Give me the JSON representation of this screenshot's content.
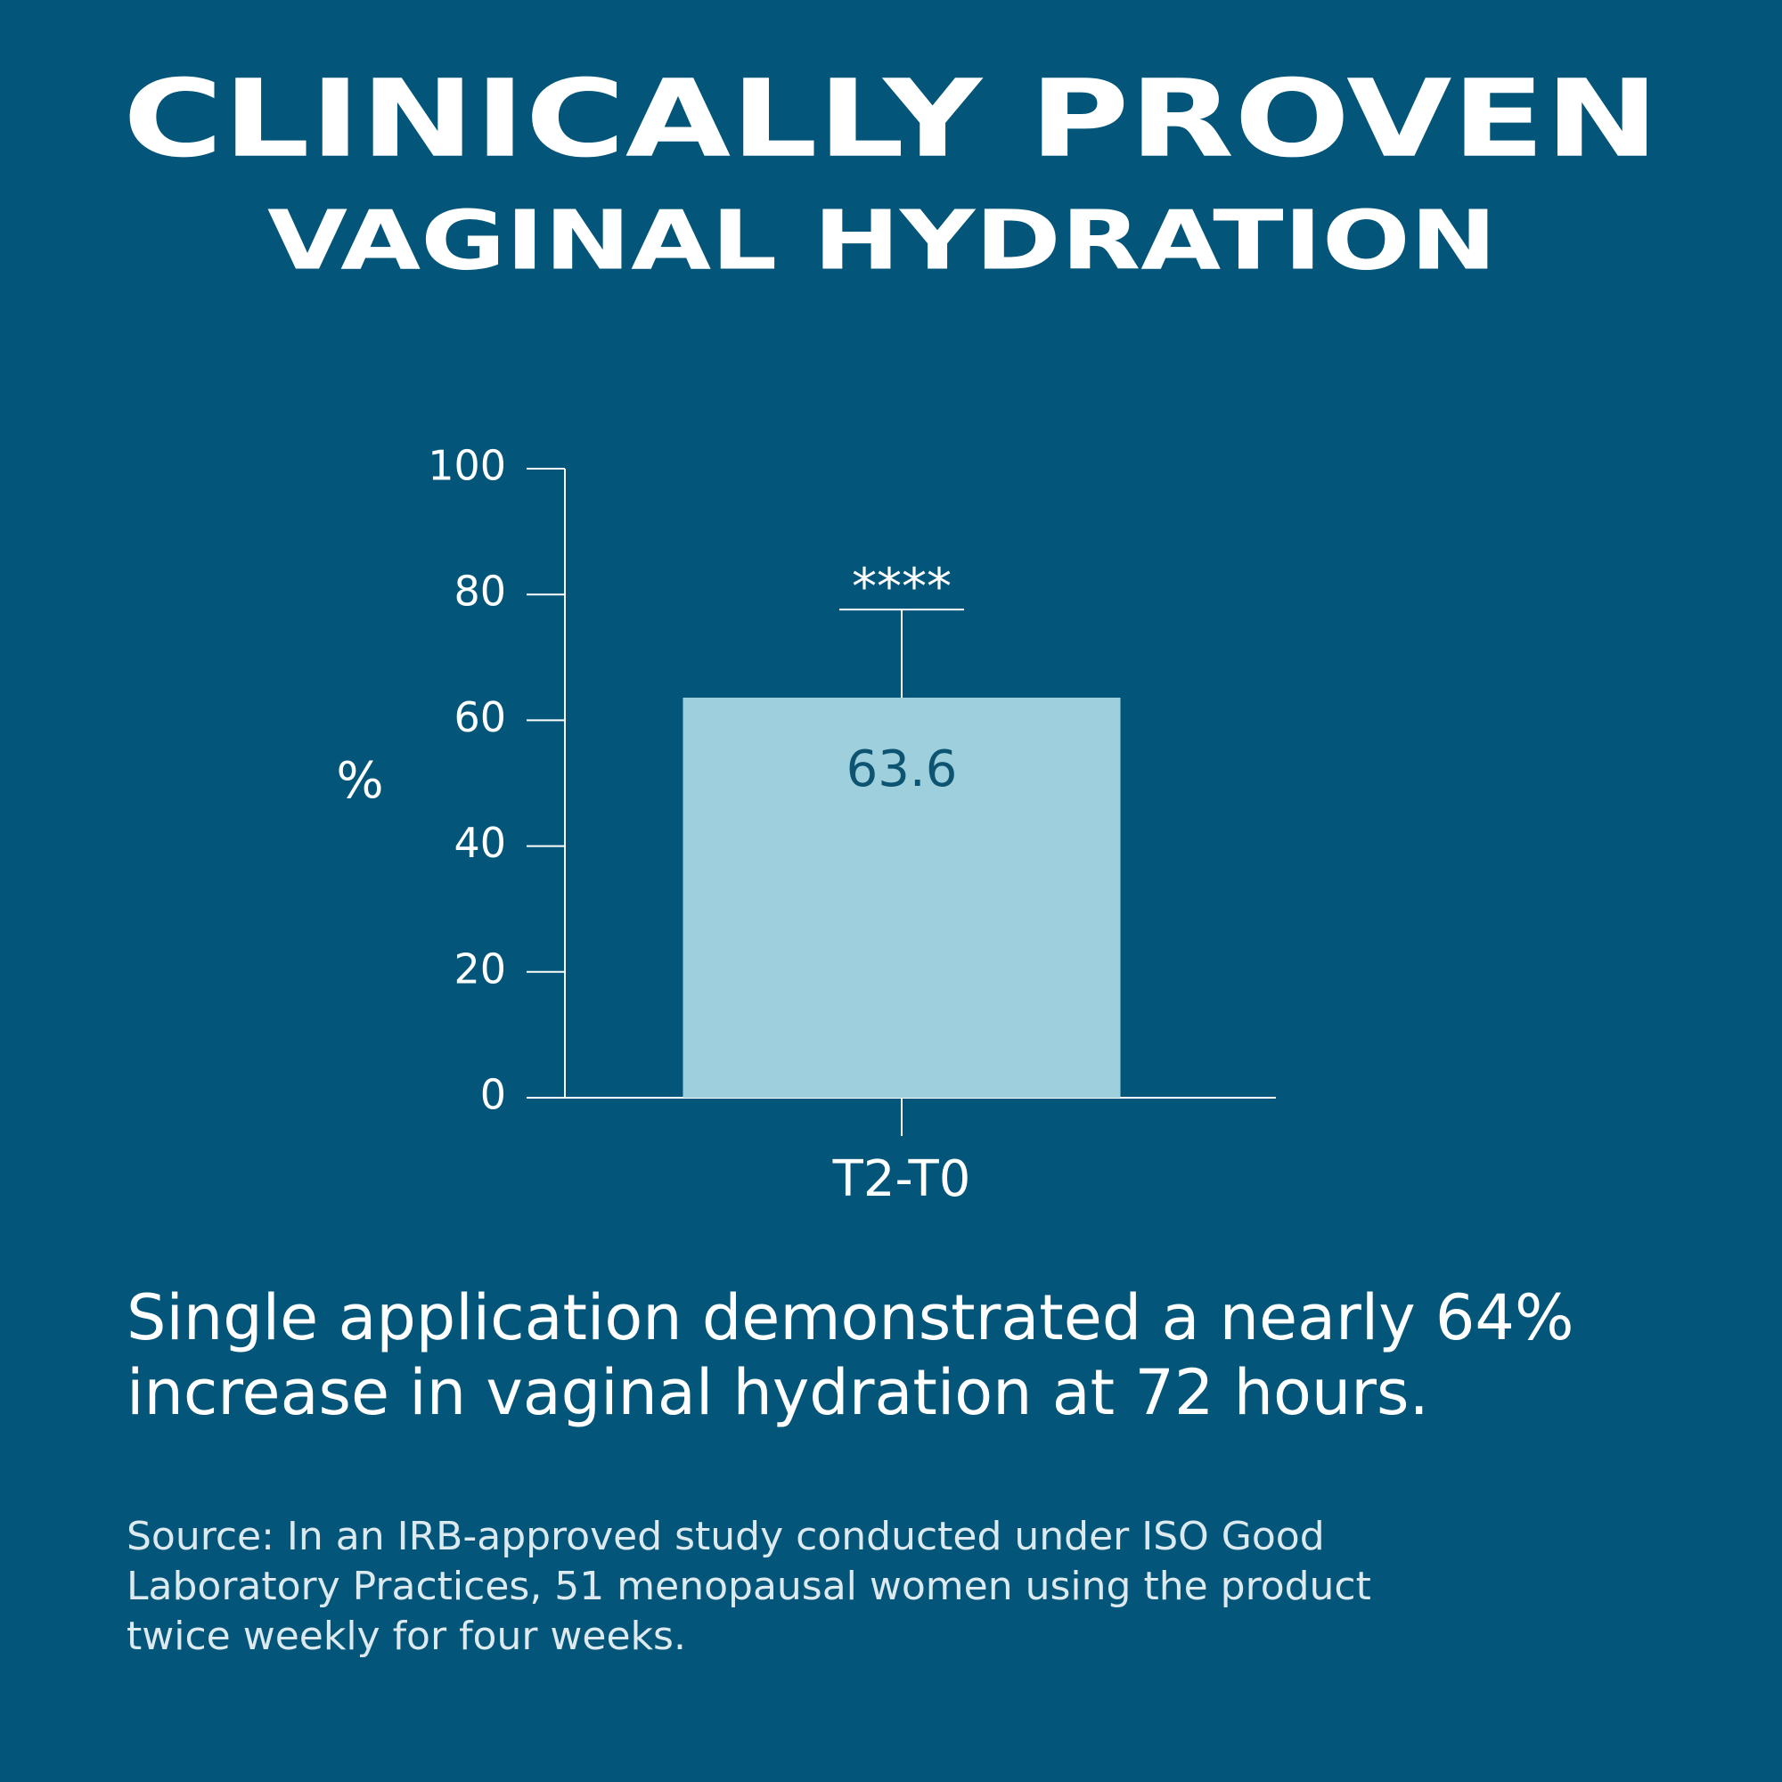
{
  "chart_data": {
    "type": "bar",
    "title": "CLINICALLY PROVEN",
    "subtitle": "VAGINAL HYDRATION",
    "y_label": "%",
    "categories": [
      "T2-T0"
    ],
    "values": [
      63.6
    ],
    "errors": [
      14
    ],
    "annotation": "****",
    "color": "#9dd0dc",
    "ylim": [
      0,
      100
    ],
    "yticks": [
      0,
      20,
      40,
      60,
      80,
      100
    ],
    "caption": [
      "Single application demonstrated a nearly 64%",
      "increase in vaginal hydration at 72 hours."
    ],
    "source": [
      "Source: In an IRB-approved study conducted under ISO Good",
      "Laboratory Practices, 51 menopausal women using the product",
      "twice weekly for four weeks."
    ]
  }
}
